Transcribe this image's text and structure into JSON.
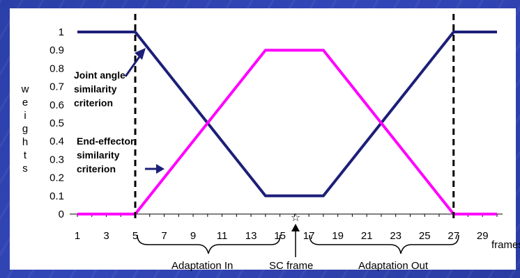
{
  "chart_data": {
    "type": "line",
    "ylabel": "weights",
    "xlabel": "frames",
    "x": [
      1,
      2,
      3,
      4,
      5,
      6,
      7,
      8,
      9,
      10,
      11,
      12,
      13,
      14,
      15,
      16,
      17,
      18,
      19,
      20,
      21,
      22,
      23,
      24,
      25,
      26,
      27,
      28,
      29,
      30
    ],
    "xticks": [
      1,
      3,
      5,
      7,
      9,
      11,
      13,
      15,
      17,
      19,
      21,
      23,
      25,
      27,
      29
    ],
    "yticks": [
      0,
      0.1,
      0.2,
      0.3,
      0.4,
      0.5,
      0.6,
      0.7,
      0.8,
      0.9,
      1
    ],
    "ylim": [
      0,
      1
    ],
    "xlim": [
      1,
      30
    ],
    "series": [
      {
        "name": "Joint angle similarity criterion",
        "color": "#1c1f78",
        "points": [
          [
            1,
            1
          ],
          [
            5,
            1
          ],
          [
            14,
            0.1
          ],
          [
            18,
            0.1
          ],
          [
            27,
            1
          ],
          [
            30,
            1
          ]
        ]
      },
      {
        "name": "End-effector similarity criterion",
        "color": "#ff00ff",
        "points": [
          [
            1,
            0
          ],
          [
            5,
            0
          ],
          [
            14,
            0.9
          ],
          [
            18,
            0.9
          ],
          [
            27,
            0
          ],
          [
            30,
            0
          ]
        ]
      }
    ],
    "vlines": [
      5,
      27
    ],
    "sc_frame": 16
  },
  "labels": {
    "adaptation_in": "Adaptation In",
    "sc_frame": "SC frame",
    "adaptation_out": "Adaptation Out"
  }
}
